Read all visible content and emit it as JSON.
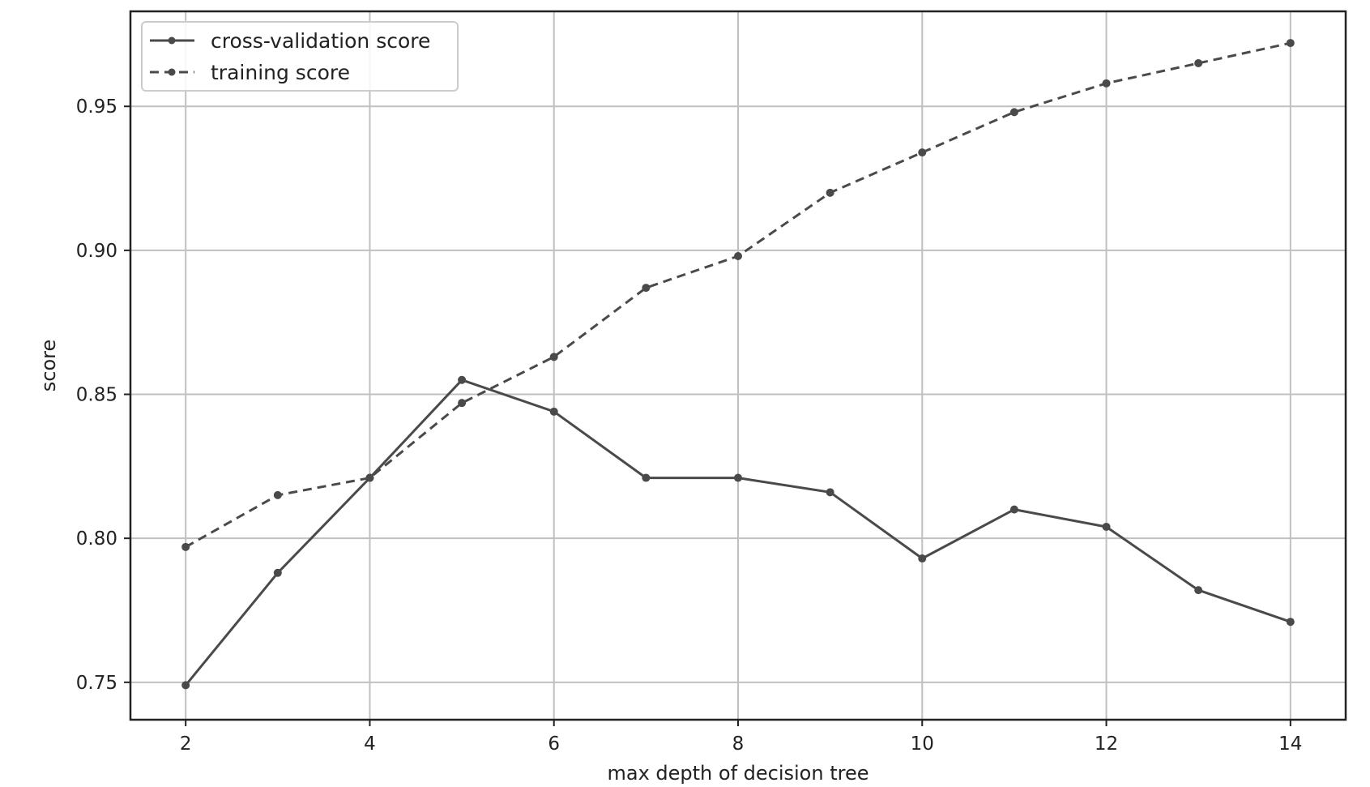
{
  "chart_data": {
    "type": "line",
    "title": "",
    "xlabel": "max depth of decision tree",
    "ylabel": "score",
    "xlim": [
      1.4,
      14.6
    ],
    "ylim": [
      0.737,
      0.983
    ],
    "xticks": [
      2,
      4,
      6,
      8,
      10,
      12,
      14
    ],
    "xtick_labels": [
      "2",
      "4",
      "6",
      "8",
      "10",
      "12",
      "14"
    ],
    "yticks": [
      0.75,
      0.8,
      0.85,
      0.9,
      0.95
    ],
    "ytick_labels": [
      "0.75",
      "0.80",
      "0.85",
      "0.90",
      "0.95"
    ],
    "grid": true,
    "legend_position": "top-left",
    "x": [
      2,
      3,
      4,
      5,
      6,
      7,
      8,
      9,
      10,
      11,
      12,
      13,
      14
    ],
    "series": [
      {
        "name": "cross-validation score",
        "style": "solid",
        "color": "#4a4a4a",
        "values": [
          0.749,
          0.788,
          0.821,
          0.855,
          0.844,
          0.821,
          0.821,
          0.816,
          0.793,
          0.81,
          0.804,
          0.782,
          0.771
        ]
      },
      {
        "name": "training score",
        "style": "dashed",
        "color": "#4a4a4a",
        "values": [
          0.797,
          0.815,
          0.821,
          0.847,
          0.863,
          0.887,
          0.898,
          0.92,
          0.934,
          0.948,
          0.958,
          0.965,
          0.972
        ]
      }
    ]
  }
}
